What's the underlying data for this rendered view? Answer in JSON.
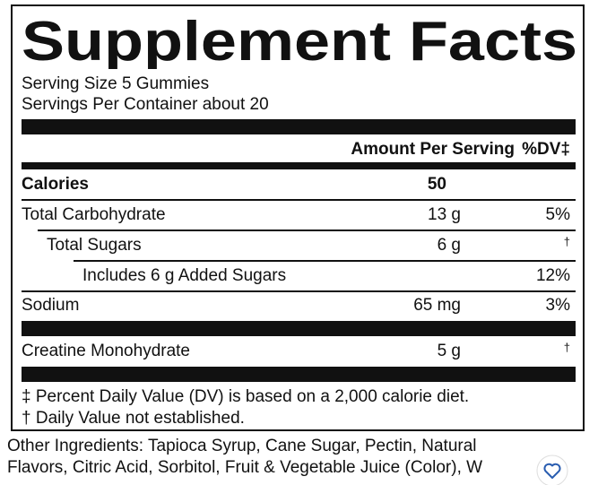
{
  "panel": {
    "title": "Supplement Facts",
    "serving_size": "Serving Size 5 Gummies",
    "servings_per_container": "Servings Per Container about 20",
    "header": {
      "amount": "Amount Per Serving",
      "dv": "%DV‡"
    },
    "rows": [
      {
        "name": "Calories",
        "amount": "50"
      },
      {
        "name": "Total Carbohydrate",
        "amount": "13 g",
        "dv": "5%"
      },
      {
        "name": "Total Sugars",
        "amount": "6 g",
        "dv": "†"
      },
      {
        "name": "Includes 6 g Added Sugars",
        "dv": "12%"
      },
      {
        "name": "Sodium",
        "amount": "65 mg",
        "dv": "3%"
      },
      {
        "name": "Creatine Monohydrate",
        "amount": "5 g",
        "dv": "†"
      }
    ],
    "footnotes": [
      "‡ Percent Daily Value (DV) is based on a 2,000 calorie diet.",
      "† Daily Value not established."
    ]
  },
  "other_ingredients": [
    "Other Ingredients: Tapioca Syrup, Cane Sugar, Pectin, Natural",
    "Flavors, Citric Acid, Sorbitol, Fruit & Vegetable Juice (Color), W"
  ]
}
